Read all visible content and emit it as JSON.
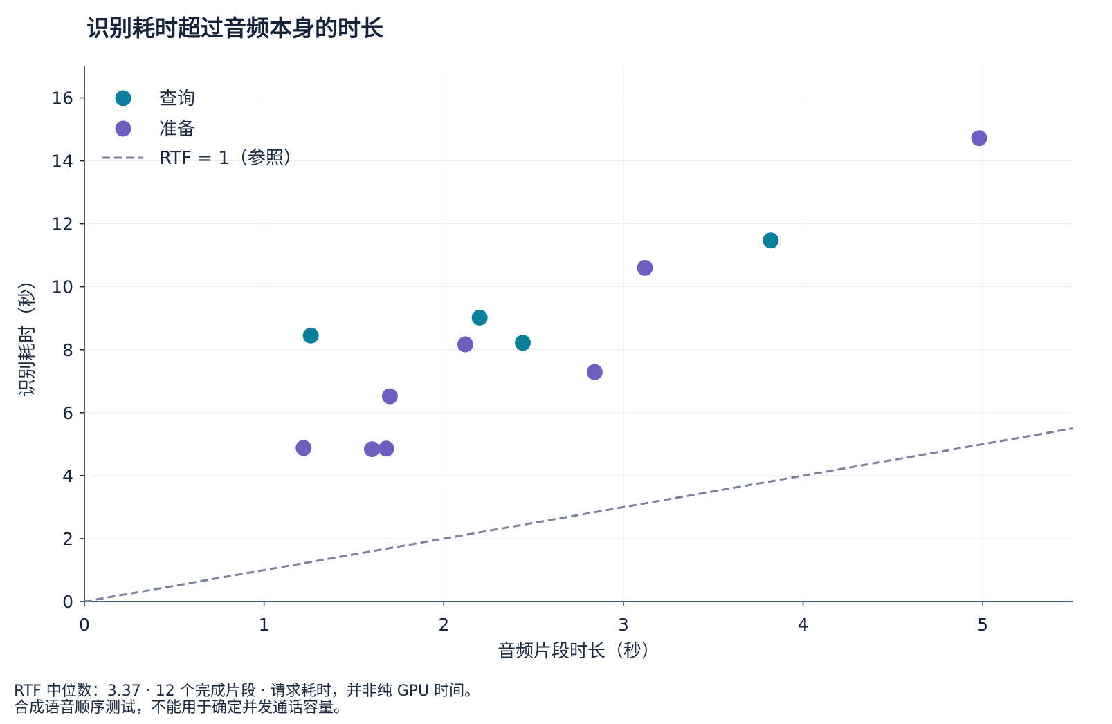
{
  "title": "识别耗时超过音频本身的时长",
  "footer": {
    "line1": "RTF 中位数：3.37 · 12 个完成片段 · 请求耗时，并非纯 GPU 时间。",
    "line2": "合成语音顺序测试，不能用于确定并发通话容量。"
  },
  "chart_data": {
    "type": "scatter",
    "title": "识别耗时超过音频本身的时长",
    "xlabel": "音频片段时长（秒）",
    "ylabel": "识别耗时（秒）",
    "xlim": [
      0,
      5.5
    ],
    "ylim": [
      0,
      17
    ],
    "xticks": [
      0,
      1,
      2,
      3,
      4,
      5
    ],
    "yticks": [
      0,
      2,
      4,
      6,
      8,
      10,
      12,
      14,
      16
    ],
    "grid": true,
    "legend_position": "top-left",
    "series": [
      {
        "name": "查询",
        "color": "#0b7f9a",
        "points": [
          {
            "x": 1.26,
            "y": 8.45
          },
          {
            "x": 2.2,
            "y": 9.02
          },
          {
            "x": 2.44,
            "y": 8.22
          },
          {
            "x": 3.82,
            "y": 11.47
          }
        ]
      },
      {
        "name": "准备",
        "color": "#6c5fc0",
        "points": [
          {
            "x": 1.22,
            "y": 4.88
          },
          {
            "x": 1.6,
            "y": 4.84
          },
          {
            "x": 1.68,
            "y": 4.86
          },
          {
            "x": 1.7,
            "y": 6.52
          },
          {
            "x": 2.12,
            "y": 8.17
          },
          {
            "x": 2.84,
            "y": 7.29
          },
          {
            "x": 3.12,
            "y": 10.6
          },
          {
            "x": 4.98,
            "y": 14.72
          }
        ]
      }
    ],
    "reference_line": {
      "name": "RTF = 1（参照）",
      "slope": 1,
      "color": "#7a8299",
      "style": "dashed"
    }
  }
}
